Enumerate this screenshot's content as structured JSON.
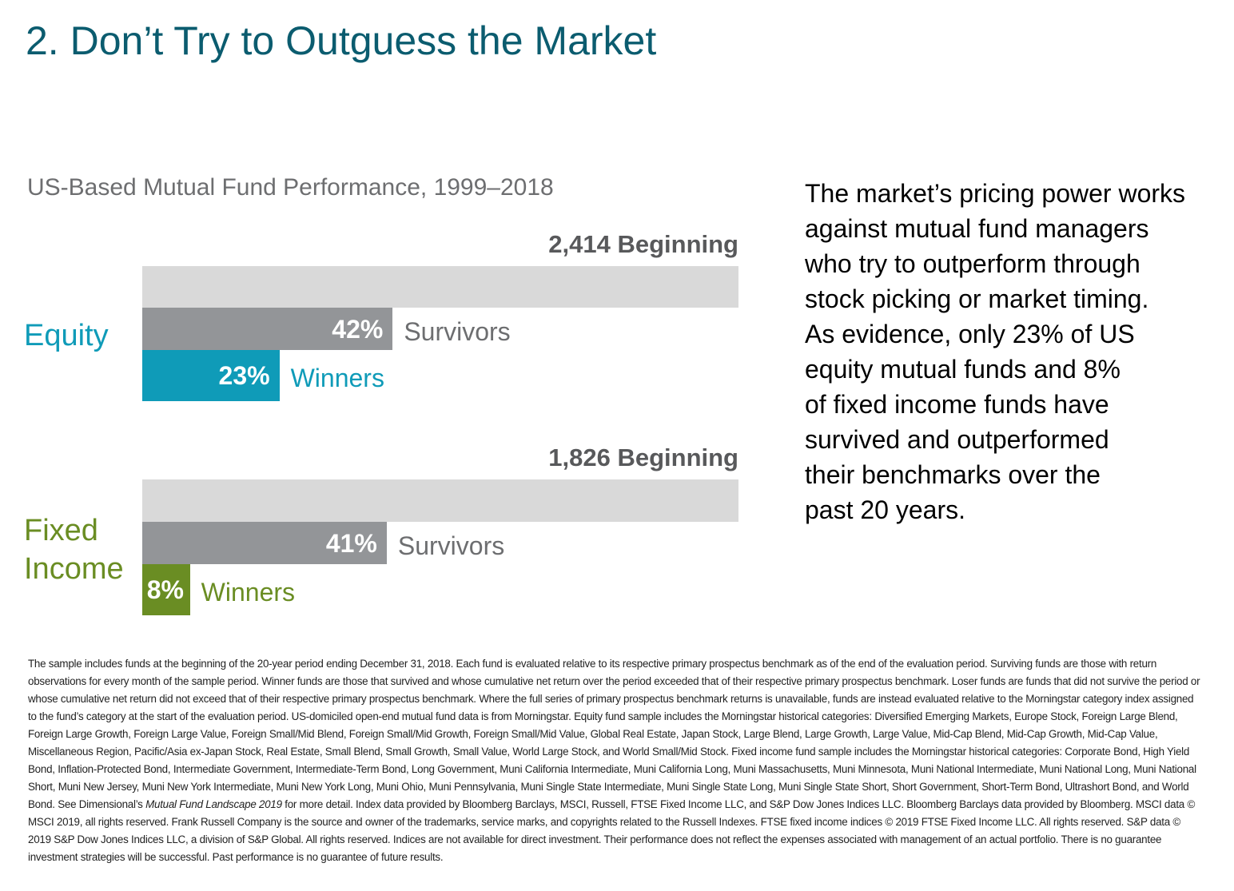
{
  "header": {
    "title": "2. Don’t Try to Outguess the Market"
  },
  "chart_data": {
    "type": "bar",
    "title": "US-Based Mutual Fund Performance, 1999–2018",
    "xlim": [
      0,
      100
    ],
    "groups": [
      {
        "name": "Equity",
        "color": "#0f9bb8",
        "beginning": {
          "value": 2414,
          "label": "2,414 Beginning"
        },
        "categories": [
          null,
          "Survivors",
          "Winners"
        ],
        "values": [
          100,
          42,
          23
        ],
        "value_labels": [
          null,
          "42%",
          "23%"
        ],
        "colors": [
          "#d9d9d9",
          "#939598",
          "#0f9bb8"
        ]
      },
      {
        "name": "Fixed Income",
        "color": "#6a8d23",
        "beginning": {
          "value": 1826,
          "label": "1,826 Beginning"
        },
        "categories": [
          null,
          "Survivors",
          "Winners"
        ],
        "values": [
          100,
          41,
          8
        ],
        "value_labels": [
          null,
          "41%",
          "8%"
        ],
        "colors": [
          "#d9d9d9",
          "#939598",
          "#6a8d23"
        ]
      }
    ]
  },
  "body": {
    "lines": [
      "The market’s pricing power works",
      "against mutual fund managers",
      "who try to outperform through",
      "stock picking or market timing.",
      "As evidence, only 23% of US",
      "equity mutual funds and 8%",
      "of fixed income funds have",
      "survived and outperformed",
      "their benchmarks over the",
      "past 20 years."
    ]
  },
  "footnote": {
    "before": "The sample includes funds at the beginning of the 20-year period ending December 31, 2018. Each fund is evaluated relative to its respective primary prospectus benchmark as of the end of the evaluation period. Surviving funds are those with return observations for every month of the sample period. Winner funds are those that survived and whose cumulative net return over the period exceeded that of their respective primary prospectus benchmark. Loser funds are funds that did not survive the period or whose cumulative net return did not exceed that of their respective primary prospectus benchmark. Where the full series of primary prospectus benchmark returns is unavailable, funds are instead evaluated relative to the Morningstar category index assigned to the fund’s category at the start of the evaluation period. US-domiciled open-end mutual fund data is from Morningstar. Equity fund sample includes the Morningstar historical categories: Diversified Emerging Markets, Europe Stock, Foreign Large Blend, Foreign Large Growth, Foreign Large Value, Foreign Small/Mid Blend, Foreign Small/Mid Growth, Foreign Small/Mid Value, Global Real Estate, Japan Stock, Large Blend, Large Growth, Large Value, Mid-Cap Blend, Mid-Cap Growth, Mid-Cap Value, Miscellaneous Region, Pacific/Asia ex-Japan Stock, Real Estate, Small Blend, Small Growth, Small Value, World Large Stock, and World Small/Mid Stock. Fixed income fund sample includes the Morningstar historical categories: Corporate Bond, High Yield Bond, Inflation-Protected Bond, Intermediate Government, Intermediate-Term Bond, Long Government, Muni California Intermediate, Muni California Long, Muni Massachusetts, Muni Minnesota, Muni National Intermediate, Muni National Long, Muni National Short, Muni New Jersey, Muni New York Intermediate, Muni New York Long, Muni Ohio, Muni Pennsylvania, Muni Single State Intermediate, Muni Single State Long, Muni Single State Short, Short Government, Short-Term Bond, Ultrashort Bond, and World Bond. See Dimensional’s ",
    "italic": "Mutual Fund Landscape 2019",
    "after": " for more detail. Index data provided by Bloomberg Barclays, MSCI, Russell, FTSE Fixed Income LLC, and S&P Dow Jones Indices LLC. Bloomberg Barclays data provided by Bloomberg. MSCI data © MSCI 2019, all rights reserved. Frank Russell Company is the source and owner of the trademarks, service marks, and copyrights related to the Russell Indexes. FTSE fixed income indices © 2019 FTSE Fixed Income LLC. All rights reserved. S&P data © 2019 S&P Dow Jones Indices LLC, a division of S&P Global. All rights reserved. Indices are not available for direct investment. Their performance does not reflect the expenses associated with management of an actual portfolio. There is no guarantee investment strategies will be successful. Past performance is no guarantee of future results."
  }
}
